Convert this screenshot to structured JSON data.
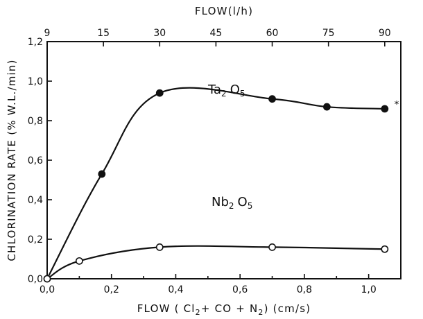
{
  "chart_data": {
    "type": "line",
    "xlabel": "FLOW ( Cl2+ CO + N2) (cm/s)",
    "x2label": "FLOW(l/h)",
    "ylabel": "CHLORINATION RATE (% W.L./min)",
    "xlim": [
      0,
      1.1
    ],
    "ylim": [
      0,
      1.2
    ],
    "x_ticks": [
      "0,0",
      "0,2",
      "0,4",
      "0,6",
      "0,8",
      "1,0"
    ],
    "x2_ticks": [
      {
        "label": "9",
        "x": 0.0
      },
      {
        "label": "15",
        "x": 0.175
      },
      {
        "label": "30",
        "x": 0.35
      },
      {
        "label": "45",
        "x": 0.525
      },
      {
        "label": "60",
        "x": 0.7
      },
      {
        "label": "75",
        "x": 0.875
      },
      {
        "label": "90",
        "x": 1.05
      }
    ],
    "y_ticks": [
      "0,0",
      "0,2",
      "0,4",
      "0,6",
      "0,8",
      "1,0",
      "1,2"
    ],
    "series": [
      {
        "name": "Ta2 O5",
        "marker": "filled-circle",
        "x": [
          0.0,
          0.17,
          0.35,
          0.7,
          0.87,
          1.05
        ],
        "y": [
          0.0,
          0.53,
          0.94,
          0.91,
          0.87,
          0.86
        ]
      },
      {
        "name": "Nb2 O5",
        "marker": "open-circle",
        "x": [
          0.0,
          0.1,
          0.35,
          0.7,
          1.05
        ],
        "y": [
          0.0,
          0.09,
          0.16,
          0.16,
          0.15
        ]
      }
    ]
  }
}
